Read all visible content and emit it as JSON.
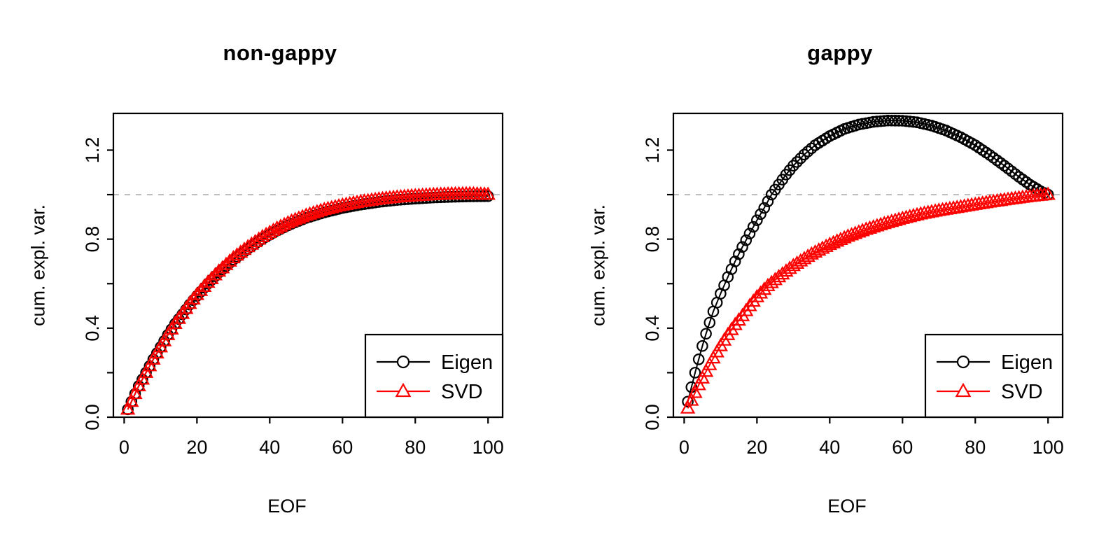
{
  "page": {
    "background": "#ffffff",
    "text_color": "#000000"
  },
  "panels": [
    {
      "title": "non-gappy",
      "xlabel": "EOF",
      "ylabel": "cum. expl. var."
    },
    {
      "title": "gappy",
      "xlabel": "EOF",
      "ylabel": "cum. expl. var."
    }
  ],
  "chart_data": [
    {
      "type": "line",
      "title": "non-gappy",
      "xlabel": "EOF",
      "ylabel": "cum. expl. var.",
      "xlim": [
        0,
        104
      ],
      "x_ticks": [
        0,
        20,
        40,
        60,
        80,
        100
      ],
      "ylim": [
        0,
        1.365
      ],
      "y_ticks_all": [
        0,
        0.2,
        0.4,
        0.6,
        0.8,
        1.0,
        1.2
      ],
      "y_tick_labels": [
        {
          "value": 0.0,
          "label": "0.0"
        },
        {
          "value": 0.4,
          "label": "0.4"
        },
        {
          "value": 0.8,
          "label": "0.8"
        },
        {
          "value": 1.2,
          "label": "1.2"
        }
      ],
      "grid": false,
      "reference_line": {
        "y": 1.0,
        "style": "dashed",
        "color": "#bebebe"
      },
      "legend": {
        "position": "bottom-right",
        "entries": [
          "Eigen",
          "SVD"
        ]
      },
      "marker_x_step": 1,
      "series": [
        {
          "name": "Eigen",
          "marker": "circle",
          "color": "#000000",
          "points": [
            [
              1,
              0.035
            ],
            [
              2,
              0.07
            ],
            [
              3,
              0.105
            ],
            [
              4,
              0.14
            ],
            [
              5,
              0.17
            ],
            [
              6,
              0.2
            ],
            [
              8,
              0.26
            ],
            [
              10,
              0.315
            ],
            [
              12,
              0.37
            ],
            [
              14,
              0.42
            ],
            [
              16,
              0.462
            ],
            [
              18,
              0.506
            ],
            [
              20,
              0.545
            ],
            [
              23,
              0.6
            ],
            [
              26,
              0.65
            ],
            [
              30,
              0.708
            ],
            [
              34,
              0.757
            ],
            [
              38,
              0.801
            ],
            [
              42,
              0.838
            ],
            [
              46,
              0.869
            ],
            [
              50,
              0.895
            ],
            [
              55,
              0.92
            ],
            [
              60,
              0.94
            ],
            [
              65,
              0.955
            ],
            [
              70,
              0.967
            ],
            [
              75,
              0.976
            ],
            [
              80,
              0.982
            ],
            [
              85,
              0.987
            ],
            [
              90,
              0.99
            ],
            [
              95,
              0.992
            ],
            [
              100,
              0.993
            ]
          ]
        },
        {
          "name": "SVD",
          "marker": "triangle",
          "color": "#ff0000",
          "points": [
            [
              1,
              0.035
            ],
            [
              2,
              0.07
            ],
            [
              3,
              0.105
            ],
            [
              4,
              0.14
            ],
            [
              5,
              0.17
            ],
            [
              6,
              0.2
            ],
            [
              8,
              0.26
            ],
            [
              10,
              0.315
            ],
            [
              12,
              0.37
            ],
            [
              14,
              0.42
            ],
            [
              16,
              0.465
            ],
            [
              18,
              0.51
            ],
            [
              20,
              0.55
            ],
            [
              23,
              0.605
            ],
            [
              26,
              0.655
            ],
            [
              30,
              0.715
            ],
            [
              34,
              0.765
            ],
            [
              38,
              0.81
            ],
            [
              42,
              0.848
            ],
            [
              46,
              0.88
            ],
            [
              50,
              0.906
            ],
            [
              55,
              0.932
            ],
            [
              60,
              0.952
            ],
            [
              65,
              0.967
            ],
            [
              70,
              0.979
            ],
            [
              75,
              0.988
            ],
            [
              80,
              0.994
            ],
            [
              85,
              0.999
            ],
            [
              90,
              1.002
            ],
            [
              95,
              1.003
            ],
            [
              100,
              1.0
            ]
          ]
        }
      ]
    },
    {
      "type": "line",
      "title": "gappy",
      "xlabel": "EOF",
      "ylabel": "cum. expl. var.",
      "xlim": [
        0,
        104
      ],
      "x_ticks": [
        0,
        20,
        40,
        60,
        80,
        100
      ],
      "ylim": [
        0,
        1.365
      ],
      "y_ticks_all": [
        0,
        0.2,
        0.4,
        0.6,
        0.8,
        1.0,
        1.2
      ],
      "y_tick_labels": [
        {
          "value": 0.0,
          "label": "0.0"
        },
        {
          "value": 0.4,
          "label": "0.4"
        },
        {
          "value": 0.8,
          "label": "0.8"
        },
        {
          "value": 1.2,
          "label": "1.2"
        }
      ],
      "grid": false,
      "reference_line": {
        "y": 1.0,
        "style": "dashed",
        "color": "#bebebe"
      },
      "legend": {
        "position": "bottom-right",
        "entries": [
          "Eigen",
          "SVD"
        ]
      },
      "marker_x_step": 1,
      "series": [
        {
          "name": "Eigen",
          "marker": "circle",
          "color": "#000000",
          "points": [
            [
              1,
              0.07
            ],
            [
              2,
              0.135
            ],
            [
              3,
              0.2
            ],
            [
              4,
              0.26
            ],
            [
              5,
              0.32
            ],
            [
              6,
              0.375
            ],
            [
              8,
              0.475
            ],
            [
              10,
              0.555
            ],
            [
              12,
              0.63
            ],
            [
              14,
              0.7
            ],
            [
              16,
              0.765
            ],
            [
              18,
              0.825
            ],
            [
              20,
              0.885
            ],
            [
              22,
              0.94
            ],
            [
              24,
              1.0
            ],
            [
              26,
              1.045
            ],
            [
              28,
              1.09
            ],
            [
              30,
              1.13
            ],
            [
              33,
              1.18
            ],
            [
              36,
              1.222
            ],
            [
              40,
              1.263
            ],
            [
              44,
              1.295
            ],
            [
              48,
              1.315
            ],
            [
              52,
              1.327
            ],
            [
              56,
              1.333
            ],
            [
              60,
              1.332
            ],
            [
              64,
              1.325
            ],
            [
              68,
              1.31
            ],
            [
              72,
              1.288
            ],
            [
              76,
              1.258
            ],
            [
              80,
              1.222
            ],
            [
              84,
              1.178
            ],
            [
              88,
              1.13
            ],
            [
              92,
              1.08
            ],
            [
              95,
              1.045
            ],
            [
              98,
              1.015
            ],
            [
              100,
              1.0
            ]
          ]
        },
        {
          "name": "SVD",
          "marker": "triangle",
          "color": "#ff0000",
          "points": [
            [
              1,
              0.04
            ],
            [
              2,
              0.075
            ],
            [
              3,
              0.11
            ],
            [
              4,
              0.145
            ],
            [
              5,
              0.175
            ],
            [
              6,
              0.205
            ],
            [
              8,
              0.265
            ],
            [
              10,
              0.32
            ],
            [
              12,
              0.37
            ],
            [
              14,
              0.415
            ],
            [
              16,
              0.455
            ],
            [
              18,
              0.5
            ],
            [
              20,
              0.54
            ],
            [
              23,
              0.59
            ],
            [
              26,
              0.63
            ],
            [
              30,
              0.68
            ],
            [
              35,
              0.732
            ],
            [
              40,
              0.775
            ],
            [
              45,
              0.812
            ],
            [
              50,
              0.843
            ],
            [
              55,
              0.869
            ],
            [
              60,
              0.892
            ],
            [
              65,
              0.912
            ],
            [
              70,
              0.928
            ],
            [
              75,
              0.941
            ],
            [
              80,
              0.955
            ],
            [
              85,
              0.968
            ],
            [
              90,
              0.98
            ],
            [
              95,
              0.991
            ],
            [
              100,
              1.0
            ]
          ]
        }
      ]
    }
  ]
}
